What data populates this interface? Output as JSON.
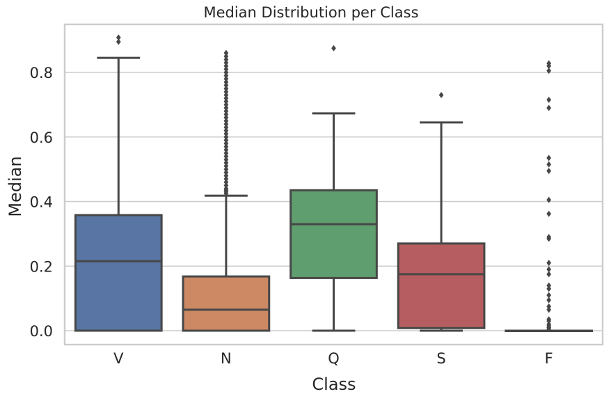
{
  "chart_data": {
    "type": "box",
    "title": "Median Distribution per Class",
    "xlabel": "Class",
    "ylabel": "Median",
    "ylim": [
      -0.045,
      0.95
    ],
    "yticks": [
      0.0,
      0.2,
      0.4,
      0.6,
      0.8
    ],
    "ytick_labels": [
      "0.0",
      "0.2",
      "0.4",
      "0.6",
      "0.8"
    ],
    "grid": "horizontal",
    "categories": [
      "V",
      "N",
      "Q",
      "S",
      "F"
    ],
    "colors": [
      "#5875a4",
      "#cc8963",
      "#5f9e6e",
      "#b55d60",
      "#857aab"
    ],
    "boxes": [
      {
        "category": "V",
        "whisker_low": 0.0,
        "q1": 0.0,
        "median": 0.215,
        "q3": 0.358,
        "whisker_high": 0.845,
        "fliers": [
          0.895,
          0.908
        ]
      },
      {
        "category": "N",
        "whisker_low": 0.0,
        "q1": 0.0,
        "median": 0.065,
        "q3": 0.168,
        "whisker_high": 0.418,
        "fliers": [
          0.425,
          0.43,
          0.435,
          0.44,
          0.45,
          0.46,
          0.47,
          0.48,
          0.49,
          0.5,
          0.51,
          0.52,
          0.53,
          0.54,
          0.55,
          0.56,
          0.57,
          0.58,
          0.59,
          0.6,
          0.61,
          0.62,
          0.63,
          0.64,
          0.65,
          0.66,
          0.67,
          0.68,
          0.69,
          0.7,
          0.71,
          0.72,
          0.73,
          0.74,
          0.75,
          0.76,
          0.77,
          0.78,
          0.79,
          0.8,
          0.81,
          0.82,
          0.83,
          0.84,
          0.85,
          0.86
        ]
      },
      {
        "category": "Q",
        "whisker_low": 0.0,
        "q1": 0.163,
        "median": 0.33,
        "q3": 0.435,
        "whisker_high": 0.673,
        "fliers": [
          0.875
        ]
      },
      {
        "category": "S",
        "whisker_low": 0.0,
        "q1": 0.008,
        "median": 0.175,
        "q3": 0.27,
        "whisker_high": 0.645,
        "fliers": [
          0.73
        ]
      },
      {
        "category": "F",
        "whisker_low": 0.0,
        "q1": 0.0,
        "median": 0.0,
        "q3": 0.0,
        "whisker_high": 0.0,
        "fliers": [
          0.005,
          0.01,
          0.015,
          0.02,
          0.03,
          0.035,
          0.065,
          0.075,
          0.095,
          0.11,
          0.13,
          0.14,
          0.175,
          0.19,
          0.21,
          0.285,
          0.29,
          0.362,
          0.405,
          0.495,
          0.515,
          0.535,
          0.69,
          0.715,
          0.805,
          0.82,
          0.828
        ]
      }
    ]
  }
}
